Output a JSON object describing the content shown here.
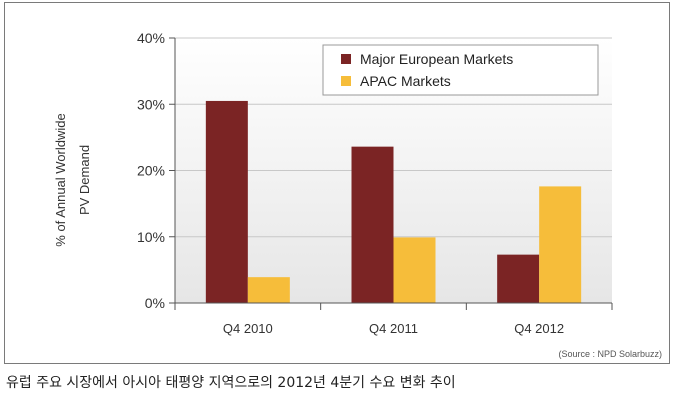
{
  "chart_data": {
    "type": "bar",
    "categories": [
      "Q4 2010",
      "Q4 2011",
      "Q4 2012"
    ],
    "series": [
      {
        "name": "Major European Markets",
        "values": [
          30.5,
          23.6,
          7.3
        ],
        "color": "#7b2424"
      },
      {
        "name": "APAC Markets",
        "values": [
          3.9,
          9.9,
          17.6
        ],
        "color": "#f6bd3a"
      }
    ],
    "ylim": [
      0,
      40
    ],
    "yticks": [
      "0%",
      "10%",
      "20%",
      "30%",
      "40%"
    ],
    "ytick_values": [
      0,
      10,
      20,
      30,
      40
    ],
    "ylabel_line1": "% of Annual Worldwide",
    "ylabel_line2": "PV Demand",
    "grid": true,
    "legend_position": "top-right",
    "source": "(Source : NPD Solarbuzz)"
  },
  "caption": "유럽 주요 시장에서 아시아 태평양 지역으로의 2012년 4분기 수요 변화 추이"
}
